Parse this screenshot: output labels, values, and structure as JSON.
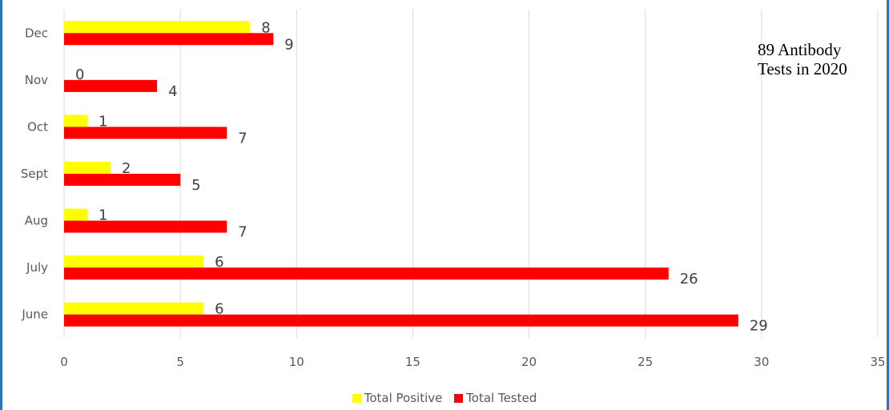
{
  "chart_data": {
    "type": "bar",
    "orientation": "horizontal",
    "categories": [
      "June",
      "July",
      "Aug",
      "Sept",
      "Oct",
      "Nov",
      "Dec"
    ],
    "series": [
      {
        "name": "Total Positive",
        "color": "#ffff00",
        "values": [
          6,
          6,
          1,
          2,
          1,
          0,
          8
        ]
      },
      {
        "name": "Total Tested",
        "color": "#ff0000",
        "values": [
          29,
          26,
          7,
          5,
          7,
          4,
          9
        ]
      }
    ],
    "xlim": [
      0,
      35
    ],
    "xticks": [
      0,
      5,
      10,
      15,
      20,
      25,
      30,
      35
    ],
    "grid": true,
    "legend_position": "bottom",
    "annotation": "89 Antibody Tests in 2020"
  }
}
